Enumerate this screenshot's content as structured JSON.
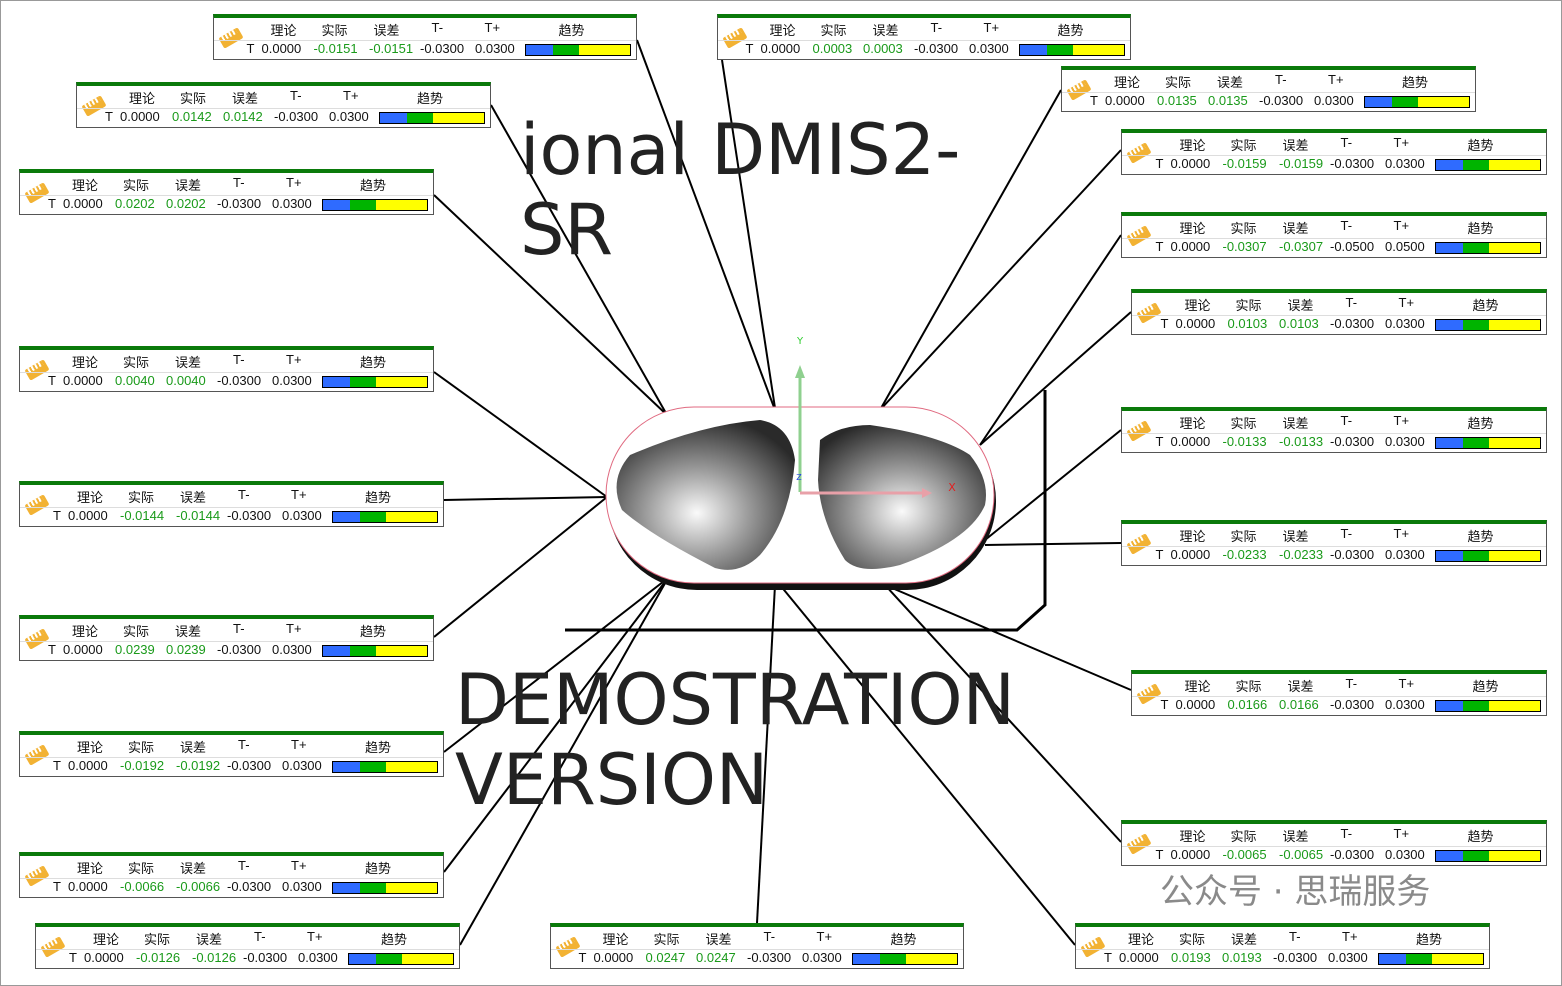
{
  "headers": {
    "nominal": "理论",
    "actual": "实际",
    "deviation": "误差",
    "tol_minus": "T-",
    "tol_plus": "T+",
    "trend": "趋势"
  },
  "axis": "T",
  "trend_colors": [
    "#2f6bff",
    "#00b400",
    "#ffff00"
  ],
  "axes_labels": {
    "x": "X",
    "y": "Y",
    "z": "Z"
  },
  "accent_color": "#0a7a0a",
  "labels": [
    {
      "nominal": "0.0000",
      "actual": "-0.0151",
      "deviation": "-0.0151",
      "tmin": "-0.0300",
      "tplus": "0.0300"
    },
    {
      "nominal": "0.0000",
      "actual": "0.0003",
      "deviation": "0.0003",
      "tmin": "-0.0300",
      "tplus": "0.0300"
    },
    {
      "nominal": "0.0000",
      "actual": "0.0135",
      "deviation": "0.0135",
      "tmin": "-0.0300",
      "tplus": "0.0300"
    },
    {
      "nominal": "0.0000",
      "actual": "0.0142",
      "deviation": "0.0142",
      "tmin": "-0.0300",
      "tplus": "0.0300"
    },
    {
      "nominal": "0.0000",
      "actual": "-0.0159",
      "deviation": "-0.0159",
      "tmin": "-0.0300",
      "tplus": "0.0300"
    },
    {
      "nominal": "0.0000",
      "actual": "0.0202",
      "deviation": "0.0202",
      "tmin": "-0.0300",
      "tplus": "0.0300"
    },
    {
      "nominal": "0.0000",
      "actual": "-0.0307",
      "deviation": "-0.0307",
      "tmin": "-0.0500",
      "tplus": "0.0500"
    },
    {
      "nominal": "0.0000",
      "actual": "0.0103",
      "deviation": "0.0103",
      "tmin": "-0.0300",
      "tplus": "0.0300"
    },
    {
      "nominal": "0.0000",
      "actual": "0.0040",
      "deviation": "0.0040",
      "tmin": "-0.0300",
      "tplus": "0.0300"
    },
    {
      "nominal": "0.0000",
      "actual": "-0.0133",
      "deviation": "-0.0133",
      "tmin": "-0.0300",
      "tplus": "0.0300"
    },
    {
      "nominal": "0.0000",
      "actual": "-0.0144",
      "deviation": "-0.0144",
      "tmin": "-0.0300",
      "tplus": "0.0300"
    },
    {
      "nominal": "0.0000",
      "actual": "-0.0233",
      "deviation": "-0.0233",
      "tmin": "-0.0300",
      "tplus": "0.0300"
    },
    {
      "nominal": "0.0000",
      "actual": "0.0239",
      "deviation": "0.0239",
      "tmin": "-0.0300",
      "tplus": "0.0300"
    },
    {
      "nominal": "0.0000",
      "actual": "0.0166",
      "deviation": "0.0166",
      "tmin": "-0.0300",
      "tplus": "0.0300"
    },
    {
      "nominal": "0.0000",
      "actual": "-0.0192",
      "deviation": "-0.0192",
      "tmin": "-0.0300",
      "tplus": "0.0300"
    },
    {
      "nominal": "0.0000",
      "actual": "-0.0065",
      "deviation": "-0.0065",
      "tmin": "-0.0300",
      "tplus": "0.0300"
    },
    {
      "nominal": "0.0000",
      "actual": "-0.0066",
      "deviation": "-0.0066",
      "tmin": "-0.0300",
      "tplus": "0.0300"
    },
    {
      "nominal": "0.0000",
      "actual": "-0.0126",
      "deviation": "-0.0126",
      "tmin": "-0.0300",
      "tplus": "0.0300"
    },
    {
      "nominal": "0.0000",
      "actual": "0.0247",
      "deviation": "0.0247",
      "tmin": "-0.0300",
      "tplus": "0.0300"
    },
    {
      "nominal": "0.0000",
      "actual": "0.0193",
      "deviation": "0.0193",
      "tmin": "-0.0300",
      "tplus": "0.0300"
    }
  ],
  "watermark": {
    "line1": "DEMOSTRATION VERSION",
    "line2": "ional DMIS2-SR",
    "wechat": "公众号 · 思瑞服务"
  }
}
